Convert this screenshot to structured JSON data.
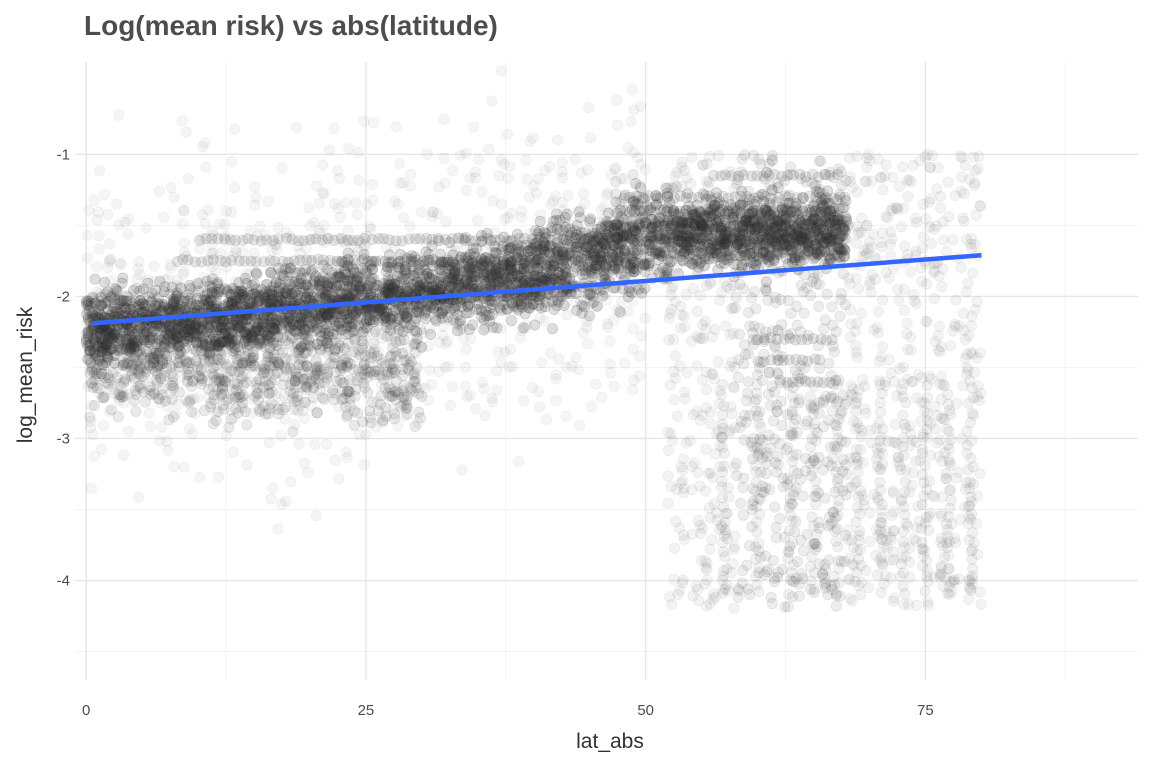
{
  "chart_data": {
    "type": "scatter",
    "title": "Log(mean risk) vs abs(latitude)",
    "xlabel": "lat_abs",
    "ylabel": "log_mean_risk",
    "xlim": [
      -1,
      94
    ],
    "ylim": [
      -4.7,
      -0.35
    ],
    "x_ticks": [
      0,
      25,
      50,
      75
    ],
    "y_ticks": [
      -1,
      -2,
      -3,
      -4
    ],
    "x_tick_labels": [
      "0",
      "25",
      "50",
      "75"
    ],
    "y_tick_labels": [
      "-1",
      "-2",
      "-3",
      "-4"
    ],
    "grid": true,
    "points_color": "#333333",
    "fit_line": {
      "color": "#3366ff",
      "x": [
        0.5,
        80
      ],
      "y": [
        -2.19,
        -1.71
      ]
    },
    "point_clusters": [
      {
        "x": [
          0,
          12
        ],
        "y": [
          -2.5,
          -2.0
        ],
        "density": "very high"
      },
      {
        "x": [
          12,
          40
        ],
        "y": [
          -2.35,
          -1.75
        ],
        "density": "very high"
      },
      {
        "x": [
          40,
          55
        ],
        "y": [
          -2.1,
          -1.45
        ],
        "density": "very high"
      },
      {
        "x": [
          45,
          68
        ],
        "y": [
          -1.95,
          -1.25
        ],
        "density": "high"
      },
      {
        "x": [
          60,
          80
        ],
        "y": [
          -4.25,
          -1.0
        ],
        "density": "low"
      },
      {
        "x": [
          0,
          45
        ],
        "y": [
          -3.6,
          -1.2
        ],
        "density": "low"
      }
    ]
  }
}
